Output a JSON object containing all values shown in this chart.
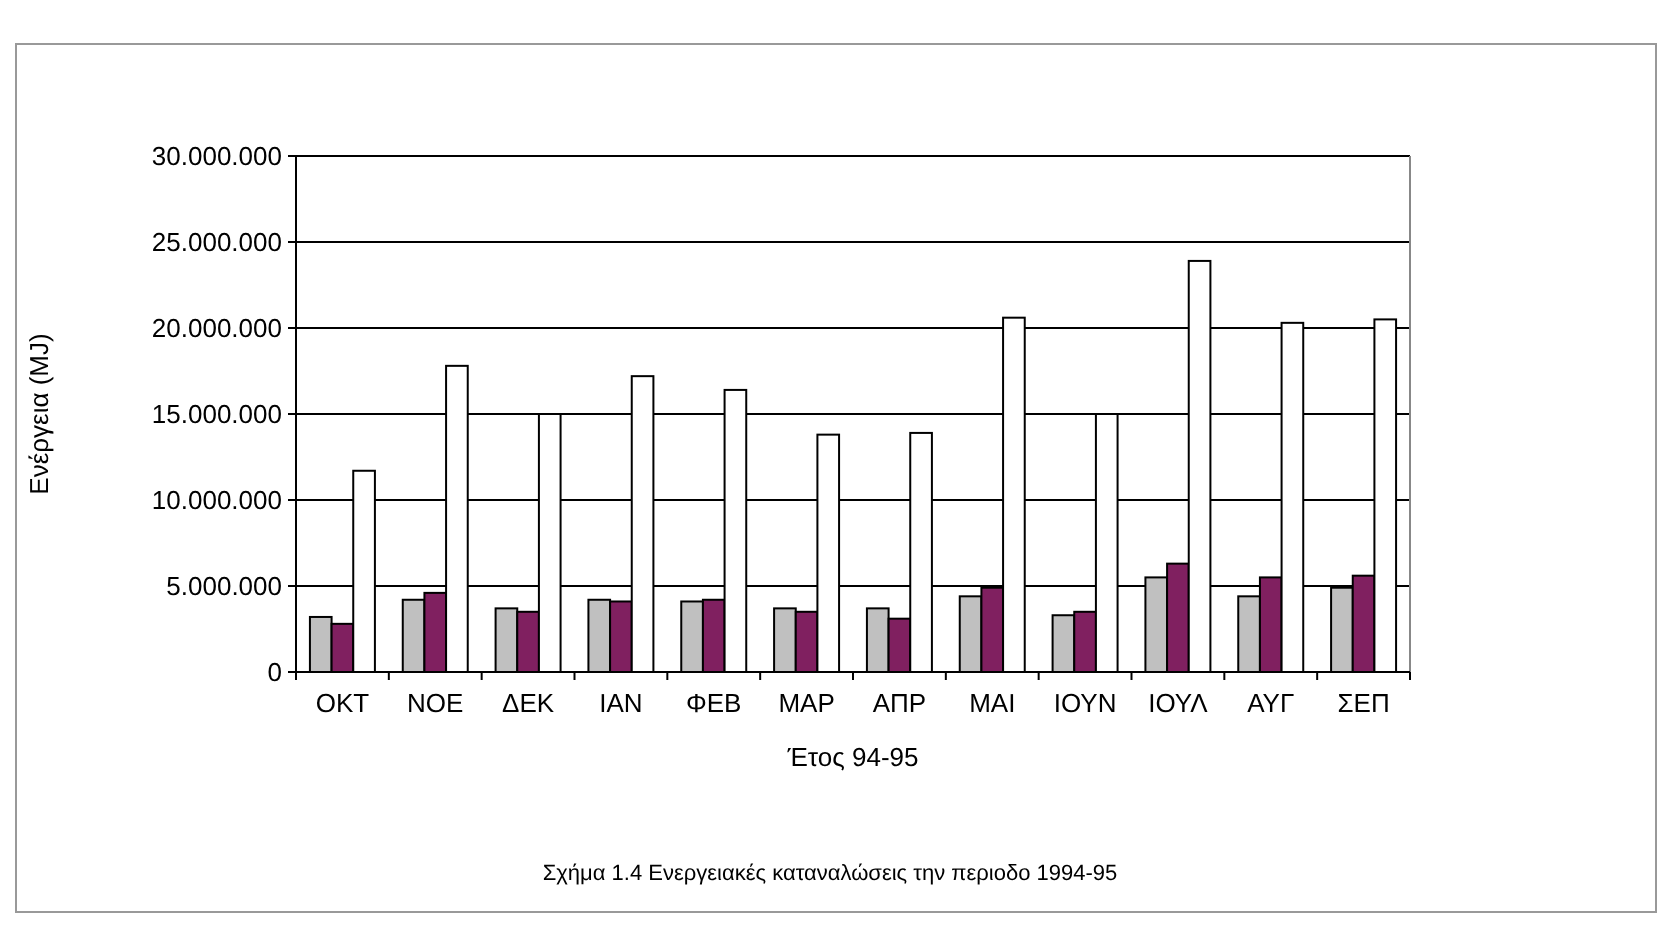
{
  "chart_data": {
    "type": "bar",
    "xlabel": "Έτος 94-95",
    "ylabel": "Ενέργεια (MJ)",
    "annotations": [
      "Σχήμα 1.4 Ενεργειακές καταναλώσεις την περιοδο 1994-95"
    ],
    "categories": [
      "ΟΚΤ",
      "ΝΟΕ",
      "ΔΕΚ",
      "ΙΑΝ",
      "ΦΕΒ",
      "ΜΑΡ",
      "ΑΠΡ",
      "ΜΑΙ",
      "ΙΟΥΝ",
      "ΙΟΥΛ",
      "ΑΥΓ",
      "ΣΕΠ"
    ],
    "series": [
      {
        "color": "#c0c0c0",
        "values": [
          3200000,
          4200000,
          3700000,
          4200000,
          4100000,
          3700000,
          3700000,
          4400000,
          3300000,
          5500000,
          4400000,
          4900000
        ]
      },
      {
        "color": "#802060",
        "values": [
          2800000,
          4600000,
          3500000,
          4100000,
          4200000,
          3500000,
          3100000,
          4900000,
          3500000,
          6300000,
          5500000,
          5600000
        ]
      },
      {
        "color": "#ffffff",
        "values": [
          11700000,
          17800000,
          15000000,
          17200000,
          16400000,
          13800000,
          13900000,
          20600000,
          15000000,
          23900000,
          20300000,
          20500000
        ]
      }
    ],
    "ylim": [
      0,
      30000000
    ],
    "yticks": [
      {
        "value": 0,
        "label": "0"
      },
      {
        "value": 5000000,
        "label": "5.000.000"
      },
      {
        "value": 10000000,
        "label": "10.000.000"
      },
      {
        "value": 15000000,
        "label": "15.000.000"
      },
      {
        "value": 20000000,
        "label": "20.000.000"
      },
      {
        "value": 25000000,
        "label": "25.000.000"
      },
      {
        "value": 30000000,
        "label": "30.000.000"
      }
    ],
    "grid": "y"
  }
}
